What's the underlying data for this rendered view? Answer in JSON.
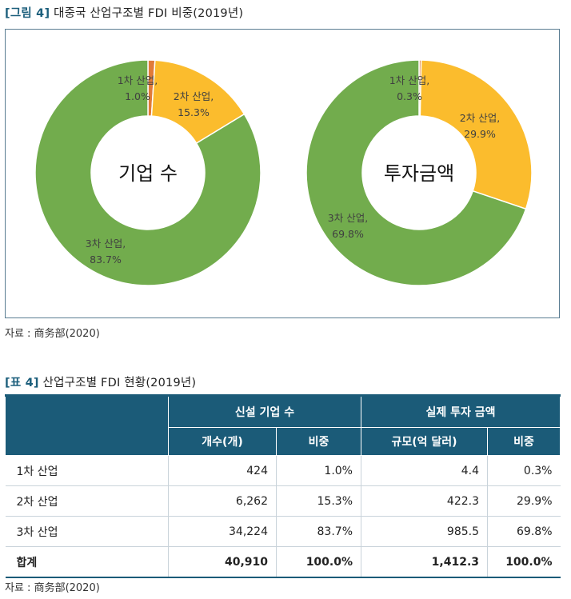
{
  "figure": {
    "tag": "[그림 4]",
    "title": "대중국 산업구조별 FDI 비중(2019년)",
    "source": "자료 : 商务部(2020)"
  },
  "chart_data": [
    {
      "type": "pie",
      "title": "기업 수",
      "categories": [
        "1차 산업",
        "2차 산업",
        "3차 산업"
      ],
      "values": [
        1.0,
        15.3,
        83.7
      ],
      "labels": [
        [
          "1차 산업,",
          "1.0%"
        ],
        [
          "2차 산업,",
          "15.3%"
        ],
        [
          "3차 산업,",
          "83.7%"
        ]
      ],
      "colors": [
        "#e07b39",
        "#fbbc2d",
        "#72ac4d"
      ]
    },
    {
      "type": "pie",
      "title": "투자금액",
      "categories": [
        "1차 산업",
        "2차 산업",
        "3차 산업"
      ],
      "values": [
        0.3,
        29.9,
        69.8
      ],
      "labels": [
        [
          "1차 산업,",
          "0.3%"
        ],
        [
          "2차 산업,",
          "29.9%"
        ],
        [
          "3차 산업,",
          "69.8%"
        ]
      ],
      "colors": [
        "#e07b39",
        "#fbbc2d",
        "#72ac4d"
      ]
    }
  ],
  "table": {
    "tag": "[표 4]",
    "title": "산업구조별 FDI 현황(2019년)",
    "group_headers": [
      "신설 기업 수",
      "실제 투자 금액"
    ],
    "sub_headers": [
      "개수(개)",
      "비중",
      "규모(억 달러)",
      "비중"
    ],
    "rows": [
      {
        "label": "1차 산업",
        "cells": [
          "424",
          "1.0%",
          "4.4",
          "0.3%"
        ]
      },
      {
        "label": "2차 산업",
        "cells": [
          "6,262",
          "15.3%",
          "422.3",
          "29.9%"
        ]
      },
      {
        "label": "3차 산업",
        "cells": [
          "34,224",
          "83.7%",
          "985.5",
          "69.8%"
        ]
      }
    ],
    "total": {
      "label": "합계",
      "cells": [
        "40,910",
        "100.0%",
        "1,412.3",
        "100.0%"
      ]
    },
    "source": "자료 : 商务部(2020)"
  }
}
